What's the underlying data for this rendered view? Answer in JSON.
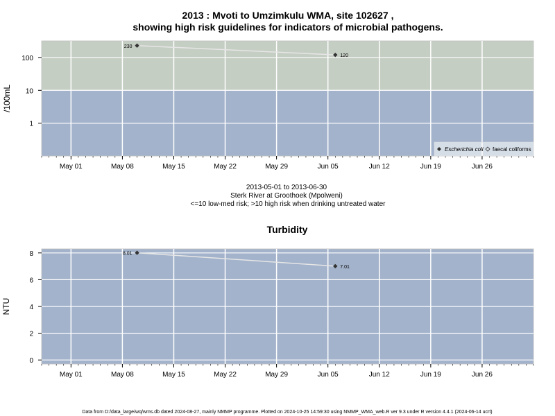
{
  "colors": {
    "high_risk_band": "#c5cec3",
    "low_risk_band": "#a3b3cb",
    "turbidity_bg": "#a3b3cb",
    "grid": "#ffffff",
    "line": "#e6e6e6",
    "point": "#333333"
  },
  "footer": "Data from D:/data_large/wq/wms.db dated 2024-08-27, mainly NMMP programme. Plotted on 2024-10-25 14:59:30 using NMMP_WMA_web.R ver 9.3 under R version 4.4.1 (2024-06-14 ucrt)",
  "chart_data": [
    {
      "type": "line",
      "title": "2013 : Mvoti to Umzimkulu WMA, site 102627 ,",
      "title_line2": "showing high risk guidelines for indicators of microbial pathogens.",
      "xlabel": "",
      "ylabel": "/100mL",
      "y_scale": "log",
      "ylim": [
        0.1,
        320
      ],
      "xlim": [
        "2013-04-27",
        "2013-07-03"
      ],
      "x_ticks": [
        {
          "date": "2013-05-01",
          "label": "May 01"
        },
        {
          "date": "2013-05-08",
          "label": "May 08"
        },
        {
          "date": "2013-05-15",
          "label": "May 15"
        },
        {
          "date": "2013-05-22",
          "label": "May 22"
        },
        {
          "date": "2013-05-29",
          "label": "May 29"
        },
        {
          "date": "2013-06-05",
          "label": "Jun 05"
        },
        {
          "date": "2013-06-12",
          "label": "Jun 12"
        },
        {
          "date": "2013-06-19",
          "label": "Jun 19"
        },
        {
          "date": "2013-06-26",
          "label": "Jun 26"
        }
      ],
      "y_ticks": [
        {
          "value": 1,
          "label": "1"
        },
        {
          "value": 10,
          "label": "10"
        },
        {
          "value": 100,
          "label": "100"
        }
      ],
      "threshold": 10,
      "grid": true,
      "legend_position": "bottom-right",
      "legend": [
        {
          "label": "Escherichia coli",
          "marker": "filled-diamond"
        },
        {
          "label": "faecal coliforms",
          "marker": "open-diamond"
        }
      ],
      "series": [
        {
          "name": "Escherichia coli",
          "points": [
            {
              "x": "2013-05-10",
              "y": 230,
              "label": "230"
            },
            {
              "x": "2013-06-06",
              "y": 120,
              "label": "120"
            }
          ]
        }
      ],
      "caption": [
        "2013-05-01 to 2013-06-30",
        "Sterk River at Groothoek (Mpolweni)",
        "<=10 low-med risk; >10 high risk when drinking untreated water"
      ]
    },
    {
      "type": "line",
      "title": "Turbidity",
      "xlabel": "",
      "ylabel": "NTU",
      "y_scale": "linear",
      "ylim": [
        -0.3,
        8.3
      ],
      "xlim": [
        "2013-04-27",
        "2013-07-03"
      ],
      "x_ticks": [
        {
          "date": "2013-05-01",
          "label": "May 01"
        },
        {
          "date": "2013-05-08",
          "label": "May 08"
        },
        {
          "date": "2013-05-15",
          "label": "May 15"
        },
        {
          "date": "2013-05-22",
          "label": "May 22"
        },
        {
          "date": "2013-05-29",
          "label": "May 29"
        },
        {
          "date": "2013-06-05",
          "label": "Jun 05"
        },
        {
          "date": "2013-06-12",
          "label": "Jun 12"
        },
        {
          "date": "2013-06-19",
          "label": "Jun 19"
        },
        {
          "date": "2013-06-26",
          "label": "Jun 26"
        }
      ],
      "y_ticks": [
        {
          "value": 0,
          "label": "0"
        },
        {
          "value": 2,
          "label": "2"
        },
        {
          "value": 4,
          "label": "4"
        },
        {
          "value": 6,
          "label": "6"
        },
        {
          "value": 8,
          "label": "8"
        }
      ],
      "grid": true,
      "series": [
        {
          "name": "",
          "points": [
            {
              "x": "2013-05-10",
              "y": 8.01,
              "label": "8.01"
            },
            {
              "x": "2013-06-06",
              "y": 7.01,
              "label": "7.01"
            }
          ]
        }
      ]
    }
  ]
}
